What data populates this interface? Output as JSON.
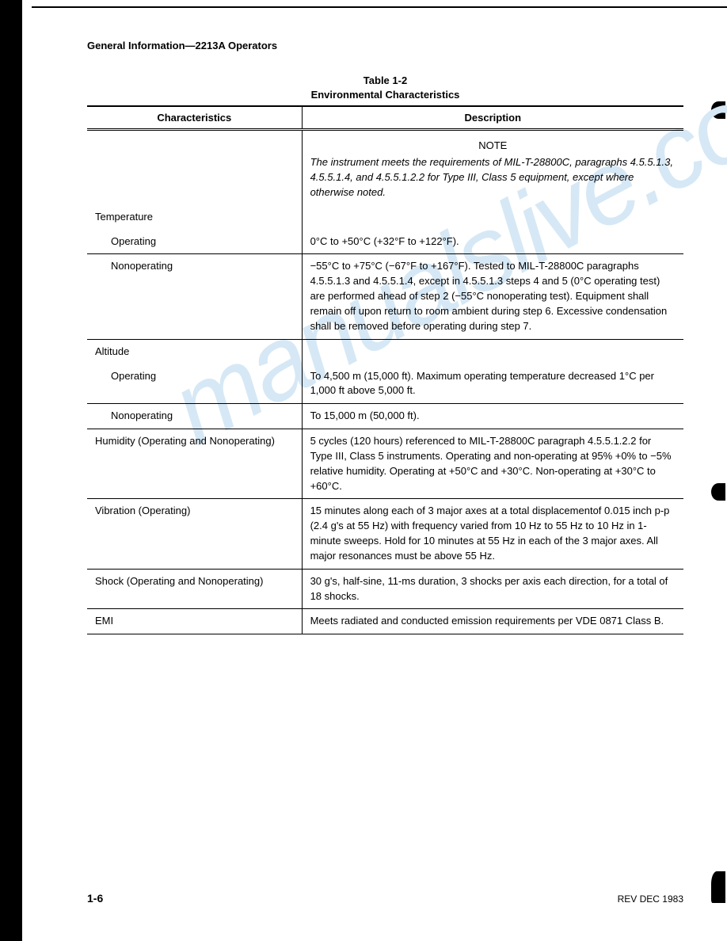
{
  "header": "General Information—2213A Operators",
  "table": {
    "caption_line1": "Table 1-2",
    "caption_line2": "Environmental Characteristics",
    "columns": [
      "Characteristics",
      "Description"
    ],
    "note_label": "NOTE",
    "note_text": "The instrument meets the requirements of MIL-T-28800C, paragraphs 4.5.5.1.3, 4.5.5.1.4, and 4.5.5.1.2.2 for Type III, Class 5 equipment, except where otherwise noted.",
    "rows": [
      {
        "char": "Temperature",
        "desc": "",
        "section": true
      },
      {
        "char": "Operating",
        "desc": "0°C to +50°C (+32°F to +122°F).",
        "indent": true,
        "sep": true
      },
      {
        "char": "Nonoperating",
        "desc": "−55°C to +75°C (−67°F to +167°F). Tested to MIL-T-28800C paragraphs 4.5.5.1.3 and 4.5.5.1.4, except in 4.5.5.1.3 steps 4 and 5 (0°C operating test) are performed ahead of step 2 (−55°C nonoperating test). Equipment shall remain off upon return to room ambient during step 6. Excessive condensation shall be removed before operating during step 7.",
        "indent": true,
        "sep": true
      },
      {
        "char": "Altitude",
        "desc": "",
        "section": true
      },
      {
        "char": "Operating",
        "desc": "To 4,500 m (15,000 ft). Maximum operating temperature decreased 1°C per 1,000 ft above 5,000 ft.",
        "indent": true,
        "sep": true
      },
      {
        "char": "Nonoperating",
        "desc": "To 15,000 m (50,000 ft).",
        "indent": true,
        "sep": true
      },
      {
        "char": "Humidity (Operating and Nonoperating)",
        "desc": "5 cycles (120 hours) referenced to MIL-T-28800C paragraph 4.5.5.1.2.2 for Type III, Class 5 instruments. Operating and non-operating at 95% +0% to −5% relative humidity. Operating at +50°C and +30°C. Non-operating at +30°C to +60°C.",
        "sep": true
      },
      {
        "char": "Vibration (Operating)",
        "desc": "15 minutes along each of 3 major axes at a total displacementof 0.015 inch p-p (2.4 g's at 55 Hz) with frequency varied from 10 Hz to 55 Hz to 10 Hz in 1-minute sweeps. Hold for 10 minutes at 55 Hz in each of the 3 major axes. All major resonances must be above 55 Hz.",
        "sep": true
      },
      {
        "char": "Shock (Operating and Nonoperating)",
        "desc": "30 g's, half-sine, 11-ms duration, 3 shocks per axis each direction, for a total of 18 shocks.",
        "sep": true
      },
      {
        "char": "EMI",
        "desc": "Meets radiated and conducted emission requirements per VDE 0871 Class B.",
        "sep": true
      }
    ]
  },
  "footer": {
    "page_number": "1-6",
    "revision": "REV DEC 1983"
  },
  "watermark": "manualslive.co"
}
